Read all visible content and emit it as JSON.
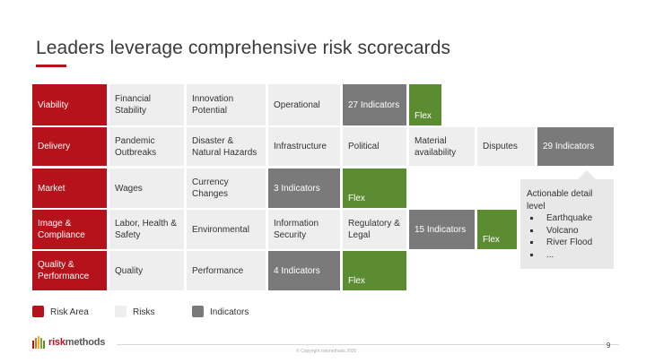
{
  "title": "Leaders leverage comprehensive risk scorecards",
  "rows": [
    {
      "risk_area": "Viability",
      "risks": [
        "Financial Stability",
        "Innovation Potential",
        "Operational"
      ],
      "indicators": "27 Indicators",
      "flex": "Flex"
    },
    {
      "risk_area": "Delivery",
      "risks": [
        "Pandemic Outbreaks",
        "Disaster & Natural Hazards",
        "Infrastructure",
        "Political",
        "Material availability",
        "Disputes"
      ],
      "indicators": "29 Indicators"
    },
    {
      "risk_area": "Market",
      "risks": [
        "Wages",
        "Currency Changes"
      ],
      "indicators": "3 Indicators",
      "flex": "Flex"
    },
    {
      "risk_area": "Image & Compliance",
      "risks": [
        "Labor, Health & Safety",
        "Environmental",
        "Information Security",
        "Regulatory & Legal"
      ],
      "indicators": "15 Indicators",
      "flex": "Flex"
    },
    {
      "risk_area": "Quality & Performance",
      "risks": [
        "Quality",
        "Performance"
      ],
      "indicators": "4 Indicators",
      "flex": "Flex"
    }
  ],
  "callout": {
    "heading": "Actionable detail level",
    "items": [
      "Earthquake",
      "Volcano",
      "River Flood",
      "..."
    ]
  },
  "legend": {
    "risk_area": "Risk Area",
    "risks": "Risks",
    "indicators": "Indicators"
  },
  "footer": {
    "logo_risk": "risk",
    "logo_methods": "methods",
    "copyright": "© Copyright riskmethods 2020",
    "page": "9"
  },
  "colors": {
    "risk_area": "#b5121b",
    "risks": "#eeeeee",
    "indicators": "#7a7a7a",
    "flex": "#5b8c32"
  }
}
